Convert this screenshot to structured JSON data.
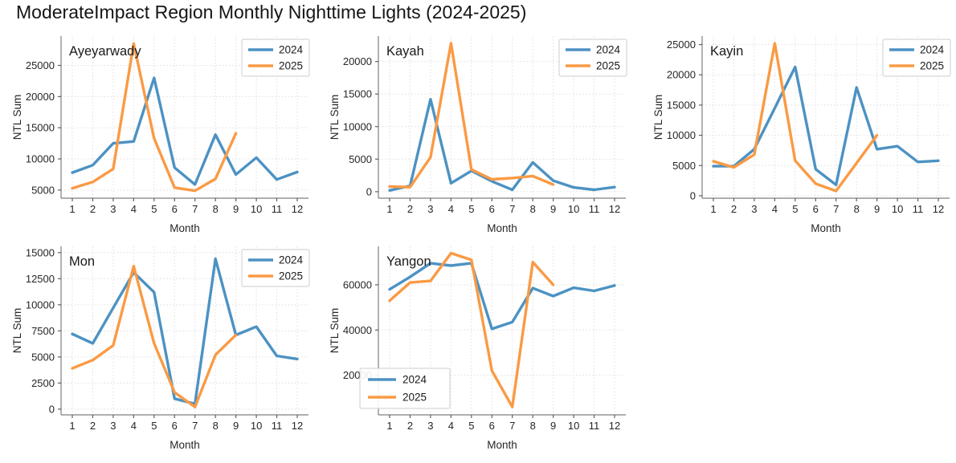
{
  "title": "ModerateImpact Region Monthly Nighttime Lights (2024-2025)",
  "colors": {
    "series_2024": "#4C92C3",
    "series_2025": "#FA9A44",
    "grid": "#dedede",
    "spine": "#7f7f7f",
    "tick": "#606060",
    "text": "#262626",
    "legend_border": "#cccccc",
    "legend_bg": "#ffffff"
  },
  "chart_data": [
    {
      "type": "line",
      "region": "Ayeyarwady",
      "xlabel": "Month",
      "ylabel": "NTL Sum",
      "x_ticks": [
        1,
        2,
        3,
        4,
        5,
        6,
        7,
        8,
        9,
        10,
        11,
        12
      ],
      "xlim": [
        0.45,
        12.55
      ],
      "ylim": [
        3700,
        29700
      ],
      "yticks": [
        5000,
        10000,
        15000,
        20000,
        25000
      ],
      "grid": true,
      "legend_loc": "upper right",
      "series": [
        {
          "name": "2024",
          "x": [
            1,
            2,
            3,
            4,
            5,
            6,
            7,
            8,
            9,
            10,
            11,
            12
          ],
          "values": [
            7800,
            9000,
            12500,
            12800,
            23000,
            8600,
            5900,
            13900,
            7500,
            10200,
            6700,
            7900
          ]
        },
        {
          "name": "2025",
          "x": [
            1,
            2,
            3,
            4,
            5,
            6,
            7,
            8,
            9
          ],
          "values": [
            5300,
            6300,
            8400,
            28500,
            13300,
            5400,
            4900,
            6800,
            14100
          ]
        }
      ]
    },
    {
      "type": "line",
      "region": "Kayah",
      "xlabel": "Month",
      "ylabel": "NTL Sum",
      "x_ticks": [
        1,
        2,
        3,
        4,
        5,
        6,
        7,
        8,
        9,
        10,
        11,
        12
      ],
      "xlim": [
        0.45,
        12.55
      ],
      "ylim": [
        -1000,
        23900
      ],
      "yticks": [
        0,
        5000,
        10000,
        15000,
        20000
      ],
      "grid": true,
      "legend_loc": "upper right",
      "series": [
        {
          "name": "2024",
          "x": [
            1,
            2,
            3,
            4,
            5,
            6,
            7,
            8,
            9,
            10,
            11,
            12
          ],
          "values": [
            200,
            900,
            14200,
            1300,
            3200,
            1600,
            300,
            4500,
            1700,
            650,
            300,
            700
          ]
        },
        {
          "name": "2025",
          "x": [
            1,
            2,
            3,
            4,
            5,
            6,
            7,
            8,
            9
          ],
          "values": [
            800,
            700,
            5300,
            22800,
            3400,
            1900,
            2100,
            2400,
            1100
          ]
        }
      ]
    },
    {
      "type": "line",
      "region": "Kayin",
      "xlabel": "Month",
      "ylabel": "NTL Sum",
      "x_ticks": [
        1,
        2,
        3,
        4,
        5,
        6,
        7,
        8,
        9,
        10,
        11,
        12
      ],
      "xlim": [
        0.45,
        12.55
      ],
      "ylim": [
        -400,
        26400
      ],
      "yticks": [
        0,
        5000,
        10000,
        15000,
        20000,
        25000
      ],
      "grid": true,
      "legend_loc": "upper right",
      "series": [
        {
          "name": "2024",
          "x": [
            1,
            2,
            3,
            4,
            5,
            6,
            7,
            8,
            9,
            10,
            11,
            12
          ],
          "values": [
            4900,
            4900,
            7700,
            14500,
            21300,
            4400,
            1800,
            17900,
            7700,
            8200,
            5600,
            5800
          ]
        },
        {
          "name": "2025",
          "x": [
            1,
            2,
            3,
            4,
            5,
            6,
            7,
            8,
            9
          ],
          "values": [
            5700,
            4700,
            6800,
            25200,
            5800,
            2000,
            800,
            5400,
            10000
          ]
        }
      ]
    },
    {
      "type": "line",
      "region": "Mon",
      "xlabel": "Month",
      "ylabel": "NTL Sum",
      "x_ticks": [
        1,
        2,
        3,
        4,
        5,
        6,
        7,
        8,
        9,
        10,
        11,
        12
      ],
      "xlim": [
        0.45,
        12.55
      ],
      "ylim": [
        -550,
        15600
      ],
      "yticks": [
        0,
        2500,
        5000,
        7500,
        10000,
        12500,
        15000
      ],
      "grid": true,
      "legend_loc": "upper right",
      "series": [
        {
          "name": "2024",
          "x": [
            1,
            2,
            3,
            4,
            5,
            6,
            7,
            8,
            9,
            10,
            11,
            12
          ],
          "values": [
            7200,
            6300,
            9700,
            13100,
            11200,
            1000,
            500,
            14400,
            7100,
            7900,
            5100,
            4800
          ]
        },
        {
          "name": "2025",
          "x": [
            1,
            2,
            3,
            4,
            5,
            6,
            7,
            8,
            9
          ],
          "values": [
            3900,
            4700,
            6100,
            13700,
            6300,
            1600,
            200,
            5200,
            7100
          ]
        }
      ]
    },
    {
      "type": "line",
      "region": "Yangon",
      "xlabel": "Month",
      "ylabel": "NTL Sum",
      "x_ticks": [
        1,
        2,
        3,
        4,
        5,
        6,
        7,
        8,
        9,
        10,
        11,
        12
      ],
      "xlim": [
        0.45,
        12.55
      ],
      "ylim": [
        2500,
        77000
      ],
      "yticks": [
        20000,
        40000,
        60000
      ],
      "grid": true,
      "legend_loc": "lower left",
      "series": [
        {
          "name": "2024",
          "x": [
            1,
            2,
            3,
            4,
            5,
            6,
            7,
            8,
            9,
            10,
            11,
            12
          ],
          "values": [
            58000,
            63500,
            69500,
            68500,
            69500,
            40500,
            43500,
            58500,
            55000,
            58700,
            57300,
            59700
          ]
        },
        {
          "name": "2025",
          "x": [
            1,
            2,
            3,
            4,
            5,
            6,
            7,
            8,
            9
          ],
          "values": [
            53000,
            61000,
            61700,
            74000,
            71000,
            22000,
            6000,
            70000,
            60000
          ]
        }
      ]
    }
  ]
}
